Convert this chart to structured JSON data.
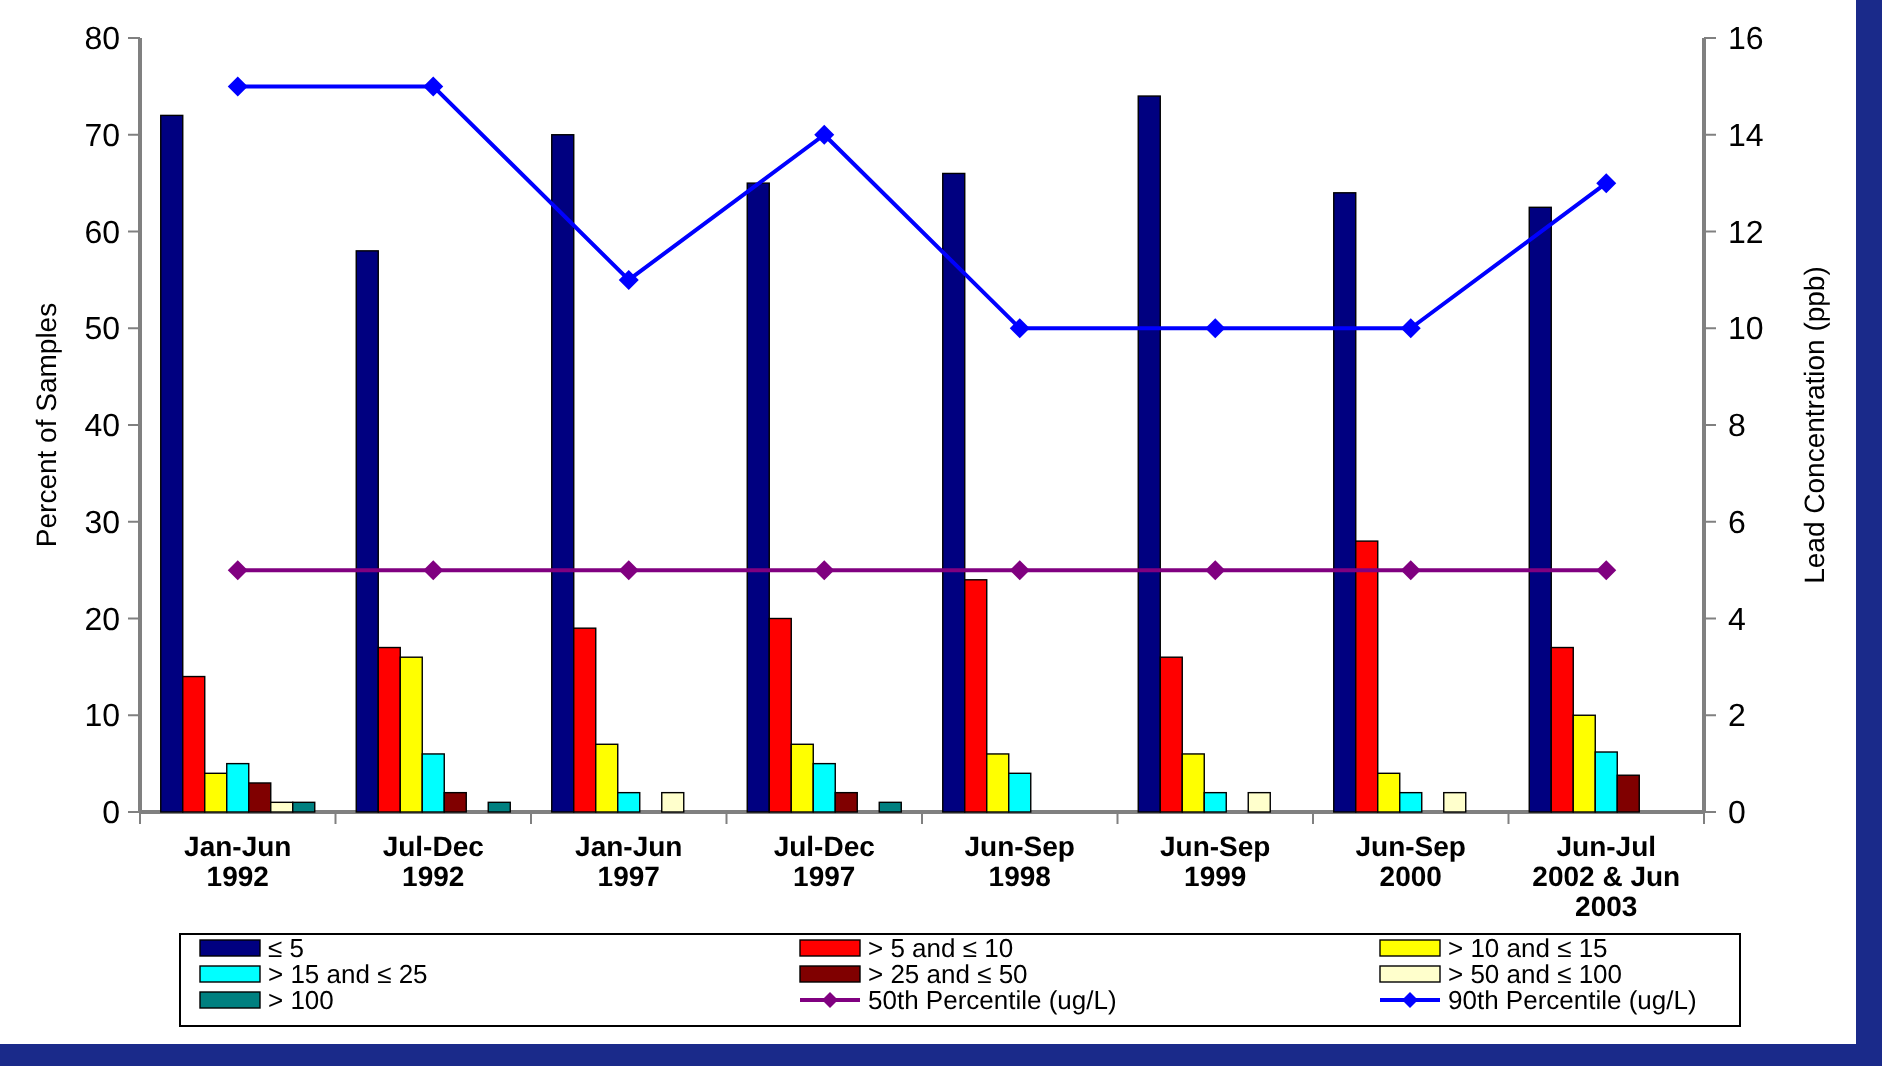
{
  "chart_data": {
    "type": "bar",
    "ylabel": "Percent of Samples",
    "y2label": "Lead Concentration (ppb)",
    "categories": [
      "Jan-Jun\n1992",
      "Jul-Dec\n1992",
      "Jan-Jun\n1997",
      "Jul-Dec\n1997",
      "Jun-Sep\n1998",
      "Jun-Sep\n1999",
      "Jun-Sep\n2000",
      "Jun-Jul\n2002 & Jun\n2003"
    ],
    "series": [
      {
        "name": "≤ 5",
        "color": "#000080",
        "values": [
          72,
          58,
          70,
          65,
          66,
          74,
          64,
          62.5
        ]
      },
      {
        "name": "> 5 and ≤ 10",
        "color": "#ff0000",
        "values": [
          14,
          17,
          19,
          20,
          24,
          16,
          28,
          17
        ]
      },
      {
        "name": "> 10 and ≤ 15",
        "color": "#ffff00",
        "values": [
          4,
          16,
          7,
          7,
          6,
          6,
          4,
          10
        ]
      },
      {
        "name": "> 15 and ≤ 25",
        "color": "#00ffff",
        "values": [
          5,
          6,
          2,
          5,
          4,
          2,
          2,
          6.2
        ]
      },
      {
        "name": "> 25 and ≤ 50",
        "color": "#800000",
        "values": [
          3,
          2,
          null,
          2,
          null,
          null,
          null,
          3.8
        ]
      },
      {
        "name": "> 50 and ≤ 100",
        "color": "#ffffcc",
        "values": [
          1,
          null,
          2,
          null,
          null,
          2,
          2,
          null
        ]
      },
      {
        "name": "> 100",
        "color": "#008080",
        "values": [
          1,
          1,
          null,
          1,
          null,
          null,
          null,
          null
        ]
      },
      {
        "name": "50th Percentile (ug/L)",
        "type": "line",
        "axis": "y2",
        "color": "#800080",
        "marker": "diamond",
        "values": [
          5,
          5,
          5,
          5,
          5,
          5,
          5,
          5
        ]
      },
      {
        "name": "90th Percentile (ug/L)",
        "type": "line",
        "axis": "y2",
        "color": "#0000ff",
        "marker": "diamond",
        "values": [
          15,
          15,
          11,
          14,
          10,
          10,
          10,
          13
        ]
      }
    ],
    "ylim": [
      0,
      80
    ],
    "yticks": [
      0,
      10,
      20,
      30,
      40,
      50,
      60,
      70,
      80
    ],
    "y2lim": [
      0,
      16
    ],
    "y2ticks": [
      0,
      2,
      4,
      6,
      8,
      10,
      12,
      14,
      16
    ],
    "grid": false,
    "legend": "bottom"
  }
}
